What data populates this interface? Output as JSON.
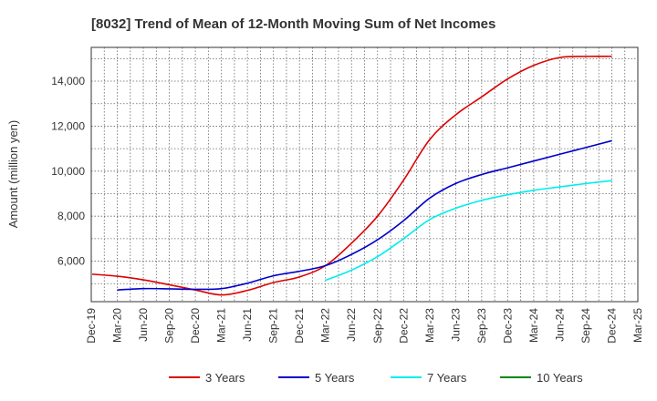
{
  "chart_data": {
    "type": "line",
    "title": "[8032]  Trend of Mean of 12-Month Moving Sum of Net Incomes",
    "xlabel": "",
    "ylabel": "Amount (million yen)",
    "ylim": [
      4200,
      15500
    ],
    "y_ticks": [
      6000,
      8000,
      10000,
      12000,
      14000
    ],
    "y_tick_labels": [
      "6,000",
      "8,000",
      "10,000",
      "12,000",
      "14,000"
    ],
    "x_tick_labels": [
      "Dec-19",
      "Mar-20",
      "Jun-20",
      "Sep-20",
      "Dec-20",
      "Mar-21",
      "Jun-21",
      "Sep-21",
      "Dec-21",
      "Mar-22",
      "Jun-22",
      "Sep-22",
      "Dec-22",
      "Mar-23",
      "Jun-23",
      "Sep-23",
      "Dec-23",
      "Mar-24",
      "Jun-24",
      "Sep-24",
      "Dec-24",
      "Mar-25"
    ],
    "grid": true,
    "legend_position": "bottom",
    "series": [
      {
        "name": "3 Years",
        "color": "#dd0000",
        "x": [
          "Dec-19",
          "Mar-20",
          "Jun-20",
          "Sep-20",
          "Dec-20",
          "Mar-21",
          "Jun-21",
          "Sep-21",
          "Dec-21",
          "Mar-22",
          "Jun-22",
          "Sep-22",
          "Dec-22",
          "Mar-23",
          "Jun-23",
          "Sep-23",
          "Dec-23",
          "Mar-24",
          "Jun-24",
          "Sep-24",
          "Dec-24"
        ],
        "values": [
          5420,
          5330,
          5170,
          4950,
          4720,
          4500,
          4700,
          5050,
          5300,
          5800,
          6800,
          8000,
          9600,
          11400,
          12500,
          13300,
          14100,
          14700,
          15050,
          15100,
          15100
        ]
      },
      {
        "name": "5 Years",
        "color": "#0000cc",
        "x": [
          "Mar-20",
          "Jun-20",
          "Sep-20",
          "Dec-20",
          "Mar-21",
          "Jun-21",
          "Sep-21",
          "Dec-21",
          "Mar-22",
          "Jun-22",
          "Sep-22",
          "Dec-22",
          "Mar-23",
          "Jun-23",
          "Sep-23",
          "Dec-23",
          "Mar-24",
          "Jun-24",
          "Sep-24",
          "Dec-24"
        ],
        "values": [
          4720,
          4780,
          4770,
          4750,
          4780,
          5020,
          5350,
          5550,
          5800,
          6300,
          6950,
          7800,
          8800,
          9450,
          9850,
          10150,
          10450,
          10750,
          11050,
          11350
        ]
      },
      {
        "name": "7 Years",
        "color": "#00eeee",
        "x": [
          "Mar-22",
          "Jun-22",
          "Sep-22",
          "Dec-22",
          "Mar-23",
          "Jun-23",
          "Sep-23",
          "Dec-23",
          "Mar-24",
          "Jun-24",
          "Sep-24",
          "Dec-24"
        ],
        "values": [
          5150,
          5600,
          6200,
          7000,
          7850,
          8350,
          8700,
          8950,
          9150,
          9300,
          9450,
          9580
        ]
      },
      {
        "name": "10 Years",
        "color": "#008800",
        "x": [],
        "values": []
      }
    ]
  }
}
